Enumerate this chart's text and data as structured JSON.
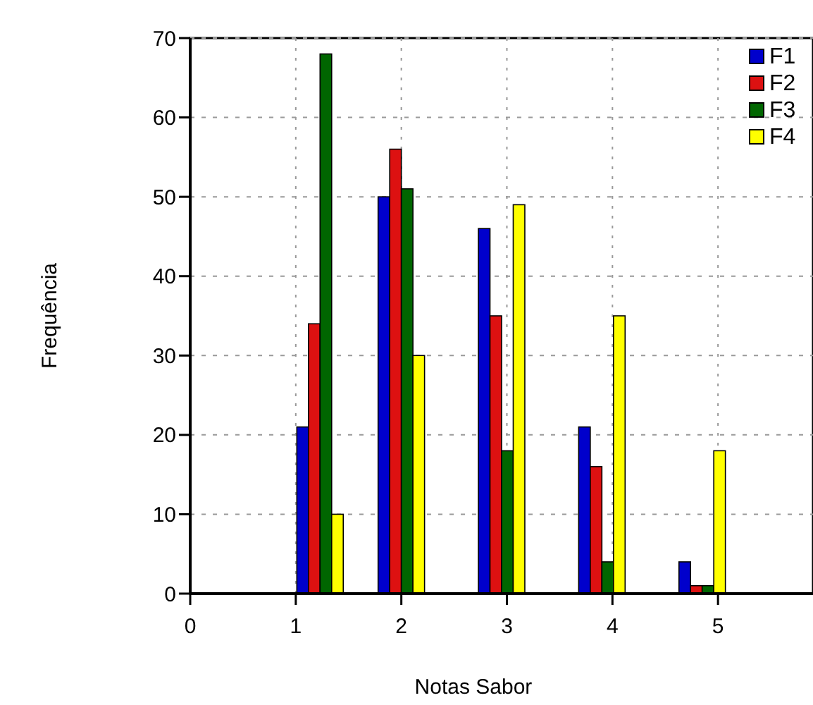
{
  "chart_data": {
    "type": "bar",
    "xlabel": "Notas Sabor",
    "ylabel": "Frequência",
    "x": [
      1.23,
      2.0,
      2.95,
      3.9,
      4.85
    ],
    "xlim": [
      0,
      5.9
    ],
    "xticks": [
      0,
      1,
      2,
      3,
      4,
      5
    ],
    "ylim": [
      0,
      70
    ],
    "yticks": [
      0,
      10,
      20,
      30,
      40,
      50,
      60,
      70
    ],
    "grid": true,
    "legend": "top right",
    "series": [
      {
        "name": "F1",
        "color": "#0000cc",
        "values": [
          21,
          50,
          46,
          21,
          4
        ]
      },
      {
        "name": "F2",
        "color": "#dd1111",
        "values": [
          34,
          56,
          35,
          16,
          1
        ]
      },
      {
        "name": "F3",
        "color": "#006600",
        "values": [
          68,
          51,
          18,
          4,
          1
        ]
      },
      {
        "name": "F4",
        "color": "#ffff00",
        "values": [
          10,
          30,
          49,
          35,
          18
        ]
      }
    ]
  }
}
